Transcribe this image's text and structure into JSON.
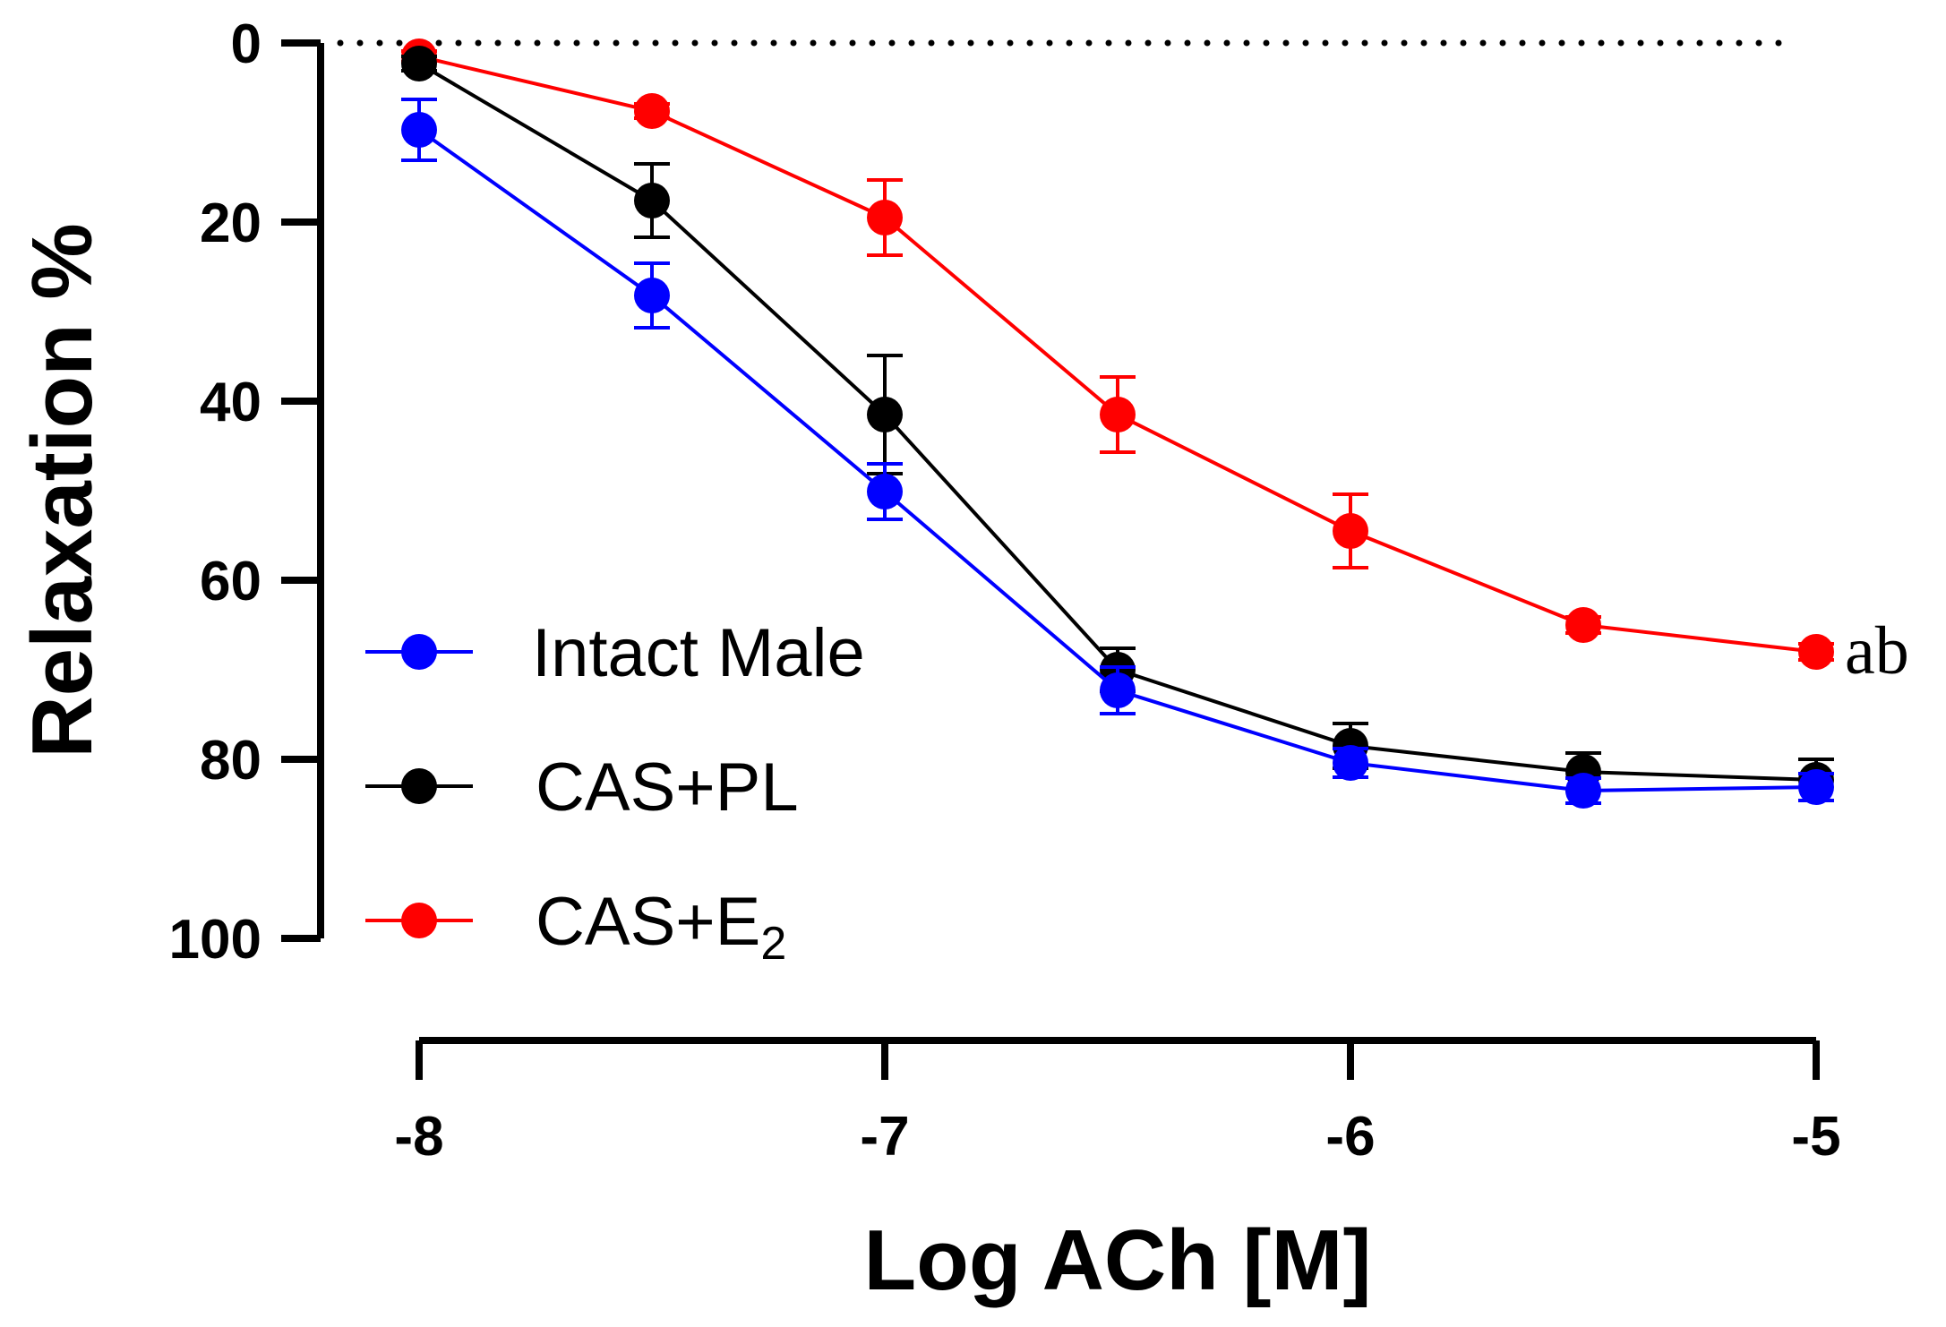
{
  "chart_data": {
    "type": "line",
    "xlabel": "Log ACh [M]",
    "ylabel": "Relaxation %",
    "xlim": [
      -8,
      -5
    ],
    "ylim": [
      0,
      100
    ],
    "y_inverted": true,
    "x_ticks": [
      -8,
      -7,
      -6,
      -5
    ],
    "x_tick_labels": [
      "-8",
      "-7",
      "-6",
      "-5"
    ],
    "y_ticks": [
      0,
      20,
      40,
      60,
      80,
      100
    ],
    "y_tick_labels": [
      "0",
      "20",
      "40",
      "60",
      "80",
      "100"
    ],
    "reference_line": {
      "y": 0,
      "style": "dotted"
    },
    "grid": false,
    "legend_position": "left",
    "series": [
      {
        "name": "Intact Male",
        "color": "#0000ff",
        "x": [
          -8,
          -7.5,
          -7,
          -6.5,
          -6,
          -5.5,
          -5
        ],
        "y": [
          9.7,
          28.2,
          50.1,
          72.3,
          80.4,
          83.5,
          83.1
        ],
        "err": [
          3.4,
          3.6,
          3.1,
          2.6,
          1.6,
          1.4,
          1.5
        ]
      },
      {
        "name": "CAS+PL",
        "color": "#000000",
        "x": [
          -8,
          -7.5,
          -7,
          -6.5,
          -6,
          -5.5,
          -5
        ],
        "y": [
          2.3,
          17.6,
          41.5,
          70.0,
          78.5,
          81.4,
          82.3
        ],
        "err": [
          0.8,
          4.1,
          6.6,
          2.4,
          2.5,
          2.1,
          2.3
        ]
      },
      {
        "name_base": "CAS+E",
        "name_sub": "2",
        "color": "#ff0000",
        "x": [
          -8,
          -7.5,
          -7,
          -6.5,
          -6,
          -5.5,
          -5
        ],
        "y": [
          1.5,
          7.6,
          19.5,
          41.5,
          54.5,
          65.0,
          68.0
        ],
        "err": [
          0.6,
          0.8,
          4.2,
          4.2,
          4.1,
          0.9,
          0.9
        ]
      }
    ],
    "annotation": "ab"
  }
}
